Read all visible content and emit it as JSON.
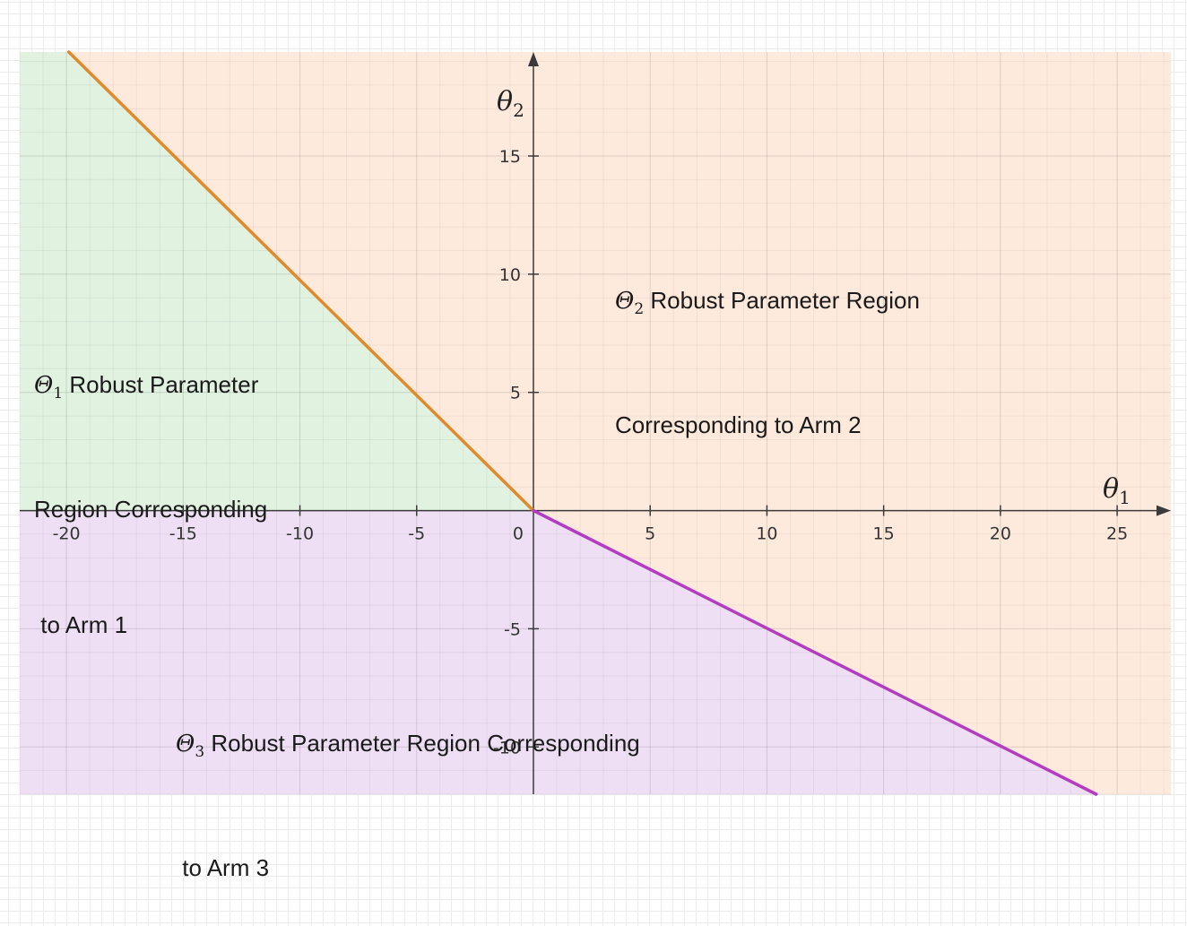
{
  "chart_data": {
    "type": "area",
    "xlabel": {
      "symbol": "θ",
      "sub": "1"
    },
    "ylabel": {
      "symbol": "θ",
      "sub": "2"
    },
    "xlim": [
      -22,
      27.3
    ],
    "ylim": [
      -12,
      19.4
    ],
    "x_ticks": [
      -20,
      -15,
      -10,
      -5,
      0,
      5,
      10,
      15,
      20,
      25
    ],
    "y_ticks": [
      -10,
      -5,
      5,
      10,
      15
    ],
    "grid": true,
    "boundaries": [
      {
        "id": "boundary-1-2",
        "color": "#e08a2c",
        "points": [
          [
            -19.9,
            19.4
          ],
          [
            0,
            0
          ]
        ]
      },
      {
        "id": "boundary-2-3",
        "color": "#b43cbf",
        "points": [
          [
            0,
            0
          ],
          [
            24.1,
            -12
          ]
        ]
      }
    ],
    "regions": [
      {
        "id": "region-1",
        "color": "#e1f2e1",
        "polygon": [
          [
            -22,
            0
          ],
          [
            -22,
            19.4
          ],
          [
            -19.9,
            19.4
          ],
          [
            0,
            0
          ]
        ],
        "label": {
          "symbol": "Θ",
          "sub": "1",
          "lines": [
            " Robust Parameter",
            "Region Corresponding",
            " to Arm 1"
          ]
        }
      },
      {
        "id": "region-2",
        "color": "#feeadd",
        "polygon": [
          [
            -19.9,
            19.4
          ],
          [
            27.3,
            19.4
          ],
          [
            27.3,
            -12
          ],
          [
            24.1,
            -12
          ],
          [
            0,
            0
          ]
        ],
        "label": {
          "symbol": "Θ",
          "sub": "2",
          "lines": [
            " Robust Parameter Region",
            "Corresponding to Arm 2"
          ]
        }
      },
      {
        "id": "region-3",
        "color": "#efdff5",
        "polygon": [
          [
            -22,
            0
          ],
          [
            0,
            0
          ],
          [
            24.1,
            -12
          ],
          [
            -22,
            -12
          ]
        ],
        "label": {
          "symbol": "Θ",
          "sub": "3",
          "lines": [
            " Robust Parameter Region Corresponding",
            " to Arm 3"
          ]
        }
      }
    ]
  }
}
